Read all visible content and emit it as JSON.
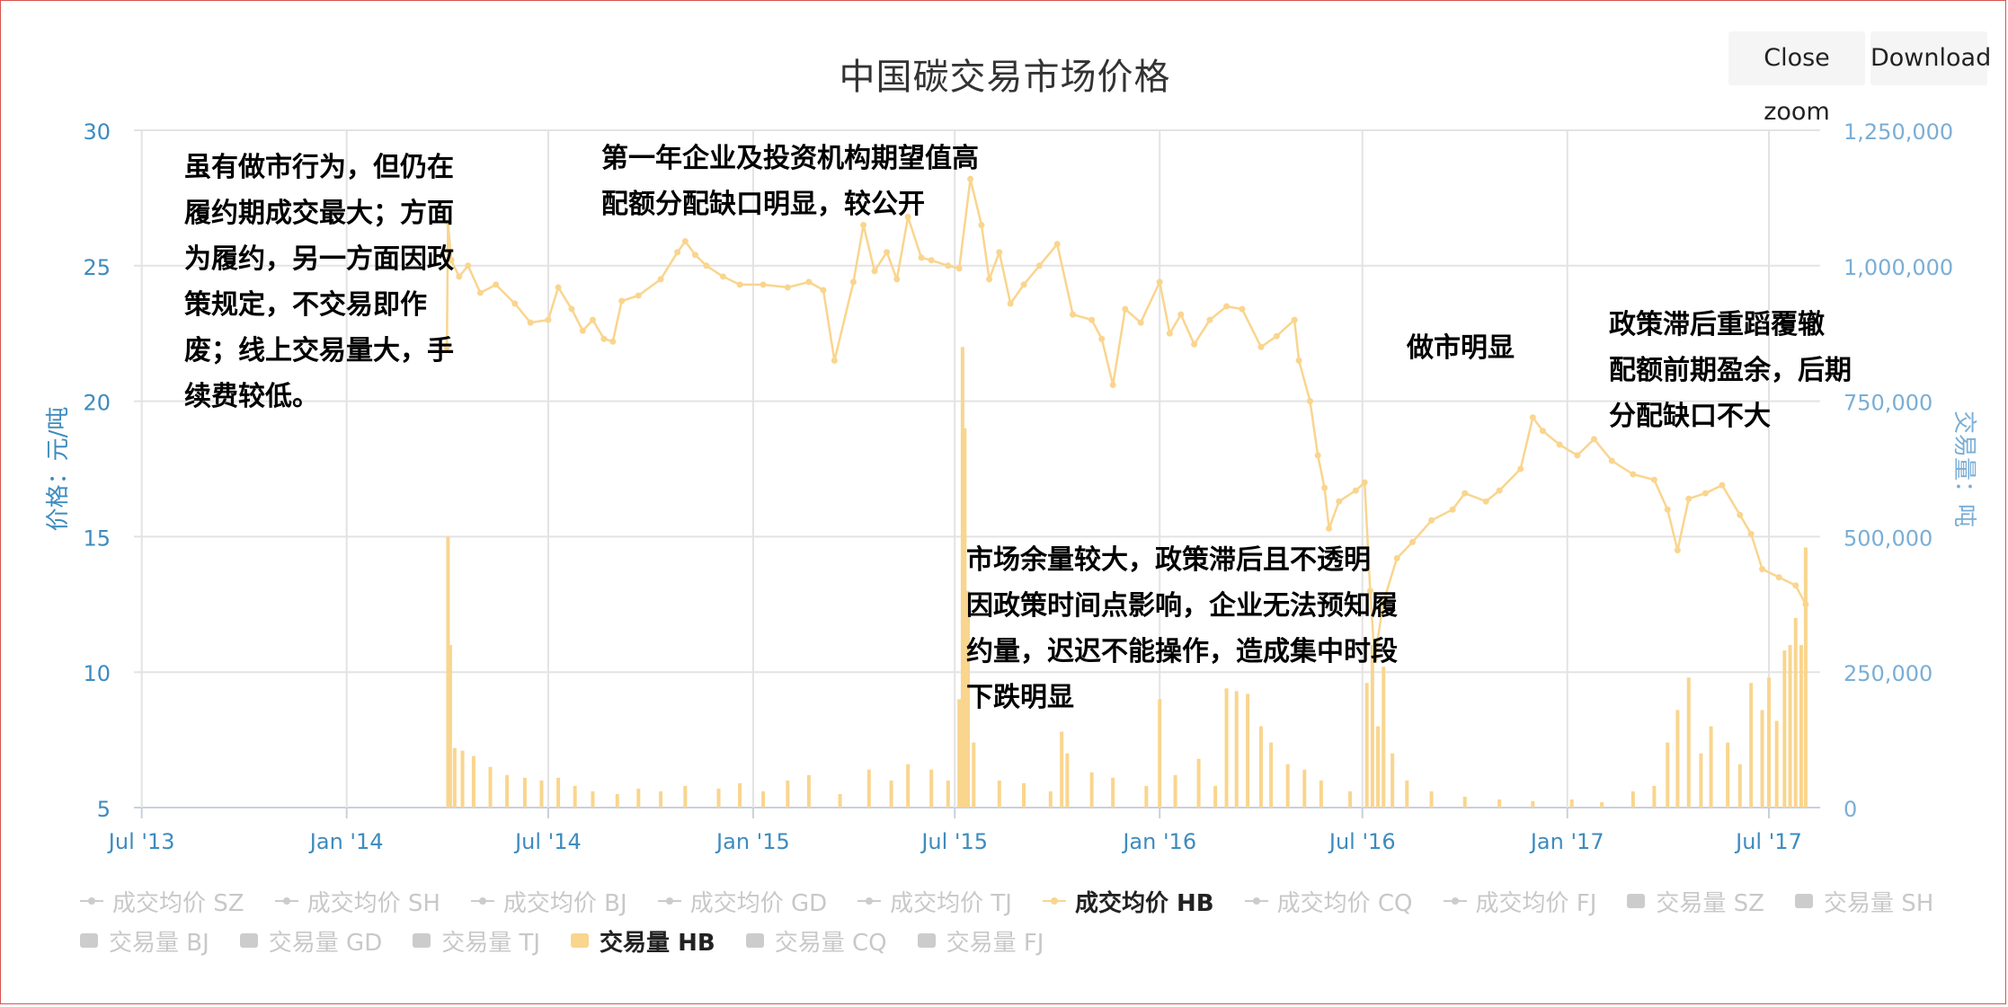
{
  "header": {
    "close_zoom_label": "Close zoom",
    "download_label": "Download"
  },
  "chart_data": {
    "type": "line",
    "title": "中国碳交易市场价格",
    "ylabel": "价格：元/吨",
    "y2label": "交易量：吨",
    "ylim": [
      5,
      30
    ],
    "y2lim": [
      0,
      1250000
    ],
    "yticks": [
      "30",
      "25",
      "20",
      "15",
      "10",
      "5"
    ],
    "y2ticks": [
      "1,250,000",
      "1,000,000",
      "750,000",
      "500,000",
      "250,000",
      "0"
    ],
    "xlim": [
      "2013-06-24",
      "2017-08-16"
    ],
    "xticks": [
      {
        "date": "2013-07-01",
        "label": "Jul '13"
      },
      {
        "date": "2014-01-01",
        "label": "Jan '14"
      },
      {
        "date": "2014-07-01",
        "label": "Jul '14"
      },
      {
        "date": "2015-01-01",
        "label": "Jan '15"
      },
      {
        "date": "2015-07-01",
        "label": "Jul '15"
      },
      {
        "date": "2016-01-01",
        "label": "Jan '16"
      },
      {
        "date": "2016-07-01",
        "label": "Jul '16"
      },
      {
        "date": "2017-01-01",
        "label": "Jan '17"
      },
      {
        "date": "2017-07-01",
        "label": "Jul '17"
      }
    ],
    "grid": true,
    "legend_position": "bottom",
    "colors": {
      "hb": "#f9d58e",
      "inactive": "#cccccc",
      "left_axis": "#3d8bbf",
      "right_axis": "#7aaed6"
    },
    "series": [
      {
        "name": "成交均价 HB",
        "type": "line",
        "axis": "left",
        "points": [
          [
            "2014-04-01",
            22.0
          ],
          [
            "2014-04-02",
            26.6
          ],
          [
            "2014-04-05",
            25.2
          ],
          [
            "2014-04-12",
            24.6
          ],
          [
            "2014-04-20",
            25.0
          ],
          [
            "2014-05-01",
            24.0
          ],
          [
            "2014-05-15",
            24.3
          ],
          [
            "2014-06-01",
            23.6
          ],
          [
            "2014-06-15",
            22.9
          ],
          [
            "2014-07-01",
            23.0
          ],
          [
            "2014-07-10",
            24.2
          ],
          [
            "2014-07-22",
            23.4
          ],
          [
            "2014-08-01",
            22.6
          ],
          [
            "2014-08-10",
            23.0
          ],
          [
            "2014-08-20",
            22.3
          ],
          [
            "2014-08-28",
            22.2
          ],
          [
            "2014-09-05",
            23.7
          ],
          [
            "2014-09-20",
            23.9
          ],
          [
            "2014-10-10",
            24.5
          ],
          [
            "2014-10-25",
            25.5
          ],
          [
            "2014-11-01",
            25.9
          ],
          [
            "2014-11-10",
            25.4
          ],
          [
            "2014-11-20",
            25.0
          ],
          [
            "2014-12-05",
            24.6
          ],
          [
            "2014-12-20",
            24.3
          ],
          [
            "2015-01-10",
            24.3
          ],
          [
            "2015-02-01",
            24.2
          ],
          [
            "2015-02-20",
            24.4
          ],
          [
            "2015-03-05",
            24.1
          ],
          [
            "2015-03-15",
            21.5
          ],
          [
            "2015-04-01",
            24.4
          ],
          [
            "2015-04-10",
            26.5
          ],
          [
            "2015-04-20",
            24.8
          ],
          [
            "2015-05-01",
            25.5
          ],
          [
            "2015-05-10",
            24.5
          ],
          [
            "2015-05-20",
            26.8
          ],
          [
            "2015-06-01",
            25.3
          ],
          [
            "2015-06-10",
            25.2
          ],
          [
            "2015-06-25",
            25.0
          ],
          [
            "2015-07-05",
            24.9
          ],
          [
            "2015-07-15",
            28.2
          ],
          [
            "2015-07-25",
            26.5
          ],
          [
            "2015-08-01",
            24.5
          ],
          [
            "2015-08-10",
            25.5
          ],
          [
            "2015-08-20",
            23.6
          ],
          [
            "2015-09-01",
            24.3
          ],
          [
            "2015-09-15",
            25.0
          ],
          [
            "2015-10-01",
            25.8
          ],
          [
            "2015-10-15",
            23.2
          ],
          [
            "2015-11-01",
            23.0
          ],
          [
            "2015-11-10",
            22.3
          ],
          [
            "2015-11-20",
            20.6
          ],
          [
            "2015-12-01",
            23.4
          ],
          [
            "2015-12-15",
            22.9
          ],
          [
            "2016-01-01",
            24.4
          ],
          [
            "2016-01-10",
            22.5
          ],
          [
            "2016-01-20",
            23.2
          ],
          [
            "2016-02-01",
            22.1
          ],
          [
            "2016-02-15",
            23.0
          ],
          [
            "2016-03-01",
            23.5
          ],
          [
            "2016-03-15",
            23.4
          ],
          [
            "2016-04-01",
            22.0
          ],
          [
            "2016-04-15",
            22.4
          ],
          [
            "2016-05-01",
            23.0
          ],
          [
            "2016-05-05",
            21.5
          ],
          [
            "2016-05-15",
            20.0
          ],
          [
            "2016-05-22",
            18.0
          ],
          [
            "2016-05-28",
            16.8
          ],
          [
            "2016-06-01",
            15.3
          ],
          [
            "2016-06-10",
            16.3
          ],
          [
            "2016-06-25",
            16.7
          ],
          [
            "2016-07-03",
            17.0
          ],
          [
            "2016-07-08",
            13.0
          ],
          [
            "2016-07-12",
            10.5
          ],
          [
            "2016-07-20",
            12.6
          ],
          [
            "2016-08-01",
            14.2
          ],
          [
            "2016-08-15",
            14.8
          ],
          [
            "2016-09-01",
            15.6
          ],
          [
            "2016-09-20",
            16.0
          ],
          [
            "2016-10-01",
            16.6
          ],
          [
            "2016-10-20",
            16.3
          ],
          [
            "2016-11-01",
            16.7
          ],
          [
            "2016-11-20",
            17.5
          ],
          [
            "2016-12-01",
            19.4
          ],
          [
            "2016-12-10",
            18.9
          ],
          [
            "2016-12-25",
            18.4
          ],
          [
            "2017-01-10",
            18.0
          ],
          [
            "2017-01-25",
            18.6
          ],
          [
            "2017-02-10",
            17.8
          ],
          [
            "2017-03-01",
            17.3
          ],
          [
            "2017-03-20",
            17.1
          ],
          [
            "2017-04-01",
            16.0
          ],
          [
            "2017-04-10",
            14.5
          ],
          [
            "2017-04-20",
            16.4
          ],
          [
            "2017-05-05",
            16.6
          ],
          [
            "2017-05-20",
            16.9
          ],
          [
            "2017-06-05",
            15.8
          ],
          [
            "2017-06-15",
            15.1
          ],
          [
            "2017-06-25",
            13.8
          ],
          [
            "2017-07-10",
            13.5
          ],
          [
            "2017-07-25",
            13.2
          ],
          [
            "2017-08-03",
            12.5
          ]
        ]
      },
      {
        "name": "交易量 HB",
        "type": "bar",
        "axis": "right",
        "points": [
          [
            "2014-04-02",
            500000
          ],
          [
            "2014-04-04",
            300000
          ],
          [
            "2014-04-08",
            110000
          ],
          [
            "2014-04-15",
            105000
          ],
          [
            "2014-04-25",
            95000
          ],
          [
            "2014-05-10",
            75000
          ],
          [
            "2014-05-25",
            60000
          ],
          [
            "2014-06-10",
            55000
          ],
          [
            "2014-06-25",
            50000
          ],
          [
            "2014-07-10",
            55000
          ],
          [
            "2014-07-25",
            40000
          ],
          [
            "2014-08-10",
            30000
          ],
          [
            "2014-09-01",
            25000
          ],
          [
            "2014-09-20",
            35000
          ],
          [
            "2014-10-10",
            30000
          ],
          [
            "2014-11-01",
            40000
          ],
          [
            "2014-12-01",
            35000
          ],
          [
            "2014-12-20",
            45000
          ],
          [
            "2015-01-10",
            30000
          ],
          [
            "2015-02-01",
            50000
          ],
          [
            "2015-02-20",
            60000
          ],
          [
            "2015-03-20",
            25000
          ],
          [
            "2015-04-15",
            70000
          ],
          [
            "2015-05-05",
            50000
          ],
          [
            "2015-05-20",
            80000
          ],
          [
            "2015-06-10",
            70000
          ],
          [
            "2015-06-25",
            50000
          ],
          [
            "2015-07-05",
            200000
          ],
          [
            "2015-07-08",
            850000
          ],
          [
            "2015-07-10",
            700000
          ],
          [
            "2015-07-13",
            400000
          ],
          [
            "2015-07-18",
            120000
          ],
          [
            "2015-08-10",
            50000
          ],
          [
            "2015-09-01",
            45000
          ],
          [
            "2015-09-25",
            30000
          ],
          [
            "2015-10-05",
            140000
          ],
          [
            "2015-10-10",
            100000
          ],
          [
            "2015-11-01",
            65000
          ],
          [
            "2015-11-20",
            55000
          ],
          [
            "2015-12-20",
            40000
          ],
          [
            "2016-01-01",
            200000
          ],
          [
            "2016-01-15",
            60000
          ],
          [
            "2016-02-05",
            90000
          ],
          [
            "2016-02-20",
            40000
          ],
          [
            "2016-03-01",
            220000
          ],
          [
            "2016-03-10",
            215000
          ],
          [
            "2016-03-20",
            210000
          ],
          [
            "2016-04-01",
            150000
          ],
          [
            "2016-04-10",
            120000
          ],
          [
            "2016-04-25",
            80000
          ],
          [
            "2016-05-10",
            70000
          ],
          [
            "2016-05-25",
            50000
          ],
          [
            "2016-06-20",
            30000
          ],
          [
            "2016-07-05",
            230000
          ],
          [
            "2016-07-10",
            300000
          ],
          [
            "2016-07-15",
            150000
          ],
          [
            "2016-07-20",
            260000
          ],
          [
            "2016-07-28",
            100000
          ],
          [
            "2016-08-10",
            50000
          ],
          [
            "2016-09-01",
            30000
          ],
          [
            "2016-10-01",
            20000
          ],
          [
            "2016-11-01",
            15000
          ],
          [
            "2016-12-01",
            12000
          ],
          [
            "2017-01-05",
            15000
          ],
          [
            "2017-02-01",
            10000
          ],
          [
            "2017-03-01",
            30000
          ],
          [
            "2017-03-20",
            40000
          ],
          [
            "2017-04-01",
            120000
          ],
          [
            "2017-04-10",
            180000
          ],
          [
            "2017-04-20",
            240000
          ],
          [
            "2017-05-01",
            100000
          ],
          [
            "2017-05-10",
            150000
          ],
          [
            "2017-05-25",
            120000
          ],
          [
            "2017-06-05",
            80000
          ],
          [
            "2017-06-15",
            230000
          ],
          [
            "2017-06-25",
            180000
          ],
          [
            "2017-07-01",
            240000
          ],
          [
            "2017-07-08",
            160000
          ],
          [
            "2017-07-15",
            290000
          ],
          [
            "2017-07-20",
            300000
          ],
          [
            "2017-07-25",
            350000
          ],
          [
            "2017-07-30",
            300000
          ],
          [
            "2017-08-03",
            480000
          ]
        ]
      }
    ],
    "annotations": [
      "虽有做市行为，但仍在\n履约期成交最大；方面\n为履约，另一方面因政\n策规定，不交易即作\n废；线上交易量大，手\n续费较低。",
      "第一年企业及投资机构期望值高\n配额分配缺口明显，较公开",
      " 市场余量较大，政策滞后且不透明\n因政策时间点影响，企业无法预知履\n约量，迟迟不能操作，造成集中时段\n下跌明显",
      "做市明显",
      "政策滞后重蹈覆辙\n配额前期盈余，后期\n分配缺口不大"
    ],
    "legend": [
      {
        "label": "成交均价 SZ",
        "symbol": "line",
        "active": false
      },
      {
        "label": "成交均价 SH",
        "symbol": "line",
        "active": false
      },
      {
        "label": "成交均价 BJ",
        "symbol": "line",
        "active": false
      },
      {
        "label": "成交均价 GD",
        "symbol": "line",
        "active": false
      },
      {
        "label": "成交均价 TJ",
        "symbol": "line",
        "active": false
      },
      {
        "label": "成交均价 HB",
        "symbol": "line",
        "active": true
      },
      {
        "label": "成交均价 CQ",
        "symbol": "line",
        "active": false
      },
      {
        "label": "成交均价 FJ",
        "symbol": "line",
        "active": false
      },
      {
        "label": "交易量 SZ",
        "symbol": "box",
        "active": false
      },
      {
        "label": "交易量 SH",
        "symbol": "box",
        "active": false
      },
      {
        "label": "交易量 BJ",
        "symbol": "box",
        "active": false
      },
      {
        "label": "交易量 GD",
        "symbol": "box",
        "active": false
      },
      {
        "label": "交易量 TJ",
        "symbol": "box",
        "active": false
      },
      {
        "label": "交易量 HB",
        "symbol": "box",
        "active": true
      },
      {
        "label": "交易量 CQ",
        "symbol": "box",
        "active": false
      },
      {
        "label": "交易量 FJ",
        "symbol": "box",
        "active": false
      }
    ]
  }
}
